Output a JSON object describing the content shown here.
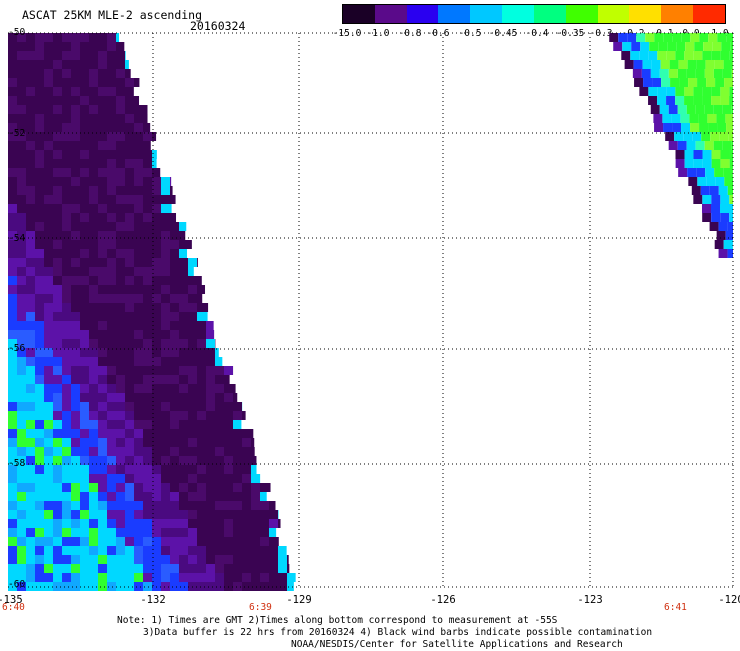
{
  "title": "ASCAT 25KM MLE-2 ascending",
  "date": "20160324",
  "colorbar": {
    "labels": [
      "-15.0",
      "-1.0",
      "-0.8",
      "-0.6",
      "-0.5",
      "-0.45",
      "-0.4",
      "-0.35",
      "-0.3",
      "-0.2",
      "-0.1",
      "0.0",
      "1.0"
    ],
    "colors": [
      "#1a0026",
      "#5a0a8a",
      "#2a00f0",
      "#0078ff",
      "#00c8ff",
      "#00ffe0",
      "#00ff80",
      "#40ff00",
      "#c0ff00",
      "#ffe000",
      "#ff8000",
      "#ff2a00"
    ]
  },
  "axes": {
    "lat_labels": [
      "-50",
      "-52",
      "-54",
      "-56",
      "-58",
      "-60"
    ],
    "lon_labels": [
      "-135",
      "-132",
      "-129",
      "-126",
      "-123",
      "-120"
    ]
  },
  "times": [
    "6:40",
    "6:39",
    "6:41"
  ],
  "notes": [
    "Note: 1) Times are GMT 2)Times along bottom correspond to measurement at -55S",
    "3)Data buffer is 22 hrs from 20160324 4) Black wind barbs indicate possible contamination",
    "NOAA/NESDIS/Center for Satellite Applications and Research"
  ],
  "palette": {
    "background": "#ffffff",
    "dark_purple": "#3a0452",
    "purple": "#5c12a8",
    "blue": "#1a3cff",
    "cyan": "#00d8ff",
    "green": "#30ff30"
  }
}
